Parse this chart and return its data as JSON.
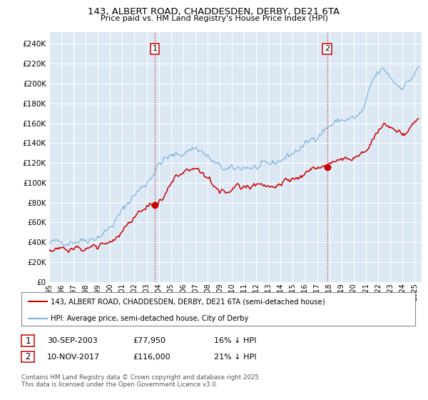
{
  "title_line1": "143, ALBERT ROAD, CHADDESDEN, DERBY, DE21 6TA",
  "title_line2": "Price paid vs. HM Land Registry's House Price Index (HPI)",
  "plot_bg_color": "#dce9f5",
  "hpi_color": "#7db4d8",
  "price_color": "#cc0000",
  "vline_color": "#cc0000",
  "annotation1_price": 77950,
  "annotation2_price": 116000,
  "legend_line1": "143, ALBERT ROAD, CHADDESDEN, DERBY, DE21 6TA (semi-detached house)",
  "legend_line2": "HPI: Average price, semi-detached house, City of Derby",
  "footer": "Contains HM Land Registry data © Crown copyright and database right 2025.\nThis data is licensed under the Open Government Licence v3.0.",
  "yticks": [
    0,
    20000,
    40000,
    60000,
    80000,
    100000,
    120000,
    140000,
    160000,
    180000,
    200000,
    220000,
    240000
  ]
}
